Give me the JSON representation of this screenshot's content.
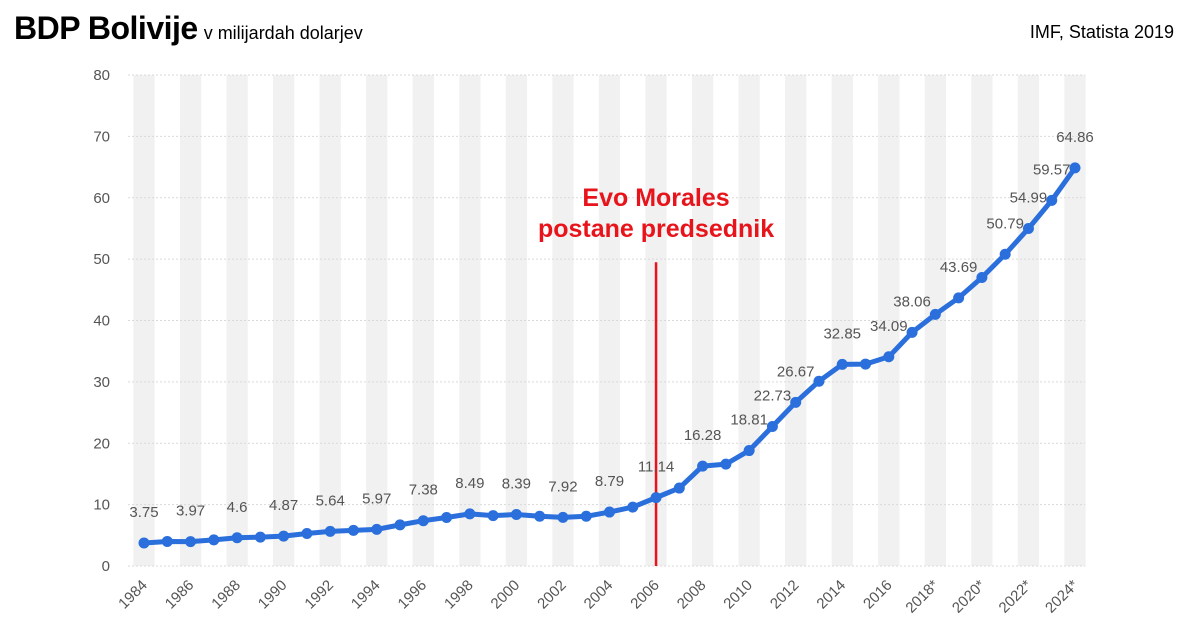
{
  "header": {
    "title": "BDP Bolivije",
    "subtitle": "v milijardah dolarjev",
    "source": "IMF, Statista 2019"
  },
  "colors": {
    "line": "#2a6fdb",
    "annotation": "#e8141b",
    "band": "#f1f1f1",
    "grid": "#d9d9d9",
    "text": "#555555"
  },
  "chart_data": {
    "type": "line",
    "title": "BDP Bolivije",
    "subtitle": "v milijardah dolarjev",
    "ylim": [
      0,
      80
    ],
    "yticks": [
      0,
      10,
      20,
      30,
      40,
      50,
      60,
      70,
      80
    ],
    "grid": true,
    "x": [
      "1984",
      "1985",
      "1986",
      "1987",
      "1988",
      "1989",
      "1990",
      "1991",
      "1992",
      "1993",
      "1994",
      "1995",
      "1996",
      "1997",
      "1998",
      "1999",
      "2000",
      "2001",
      "2002",
      "2003",
      "2004",
      "2005",
      "2006",
      "2007",
      "2008",
      "2009",
      "2010",
      "2011",
      "2012",
      "2013",
      "2014",
      "2015",
      "2016",
      "2017",
      "2018*",
      "2019*",
      "2020*",
      "2021*",
      "2022*",
      "2023*",
      "2024*"
    ],
    "xtick_labels": [
      "1984",
      "1986",
      "1988",
      "1990",
      "1992",
      "1994",
      "1996",
      "1998",
      "2000",
      "2002",
      "2004",
      "2006",
      "2008",
      "2010",
      "2012",
      "2014",
      "2016",
      "2018*",
      "2020*",
      "2022*",
      "2024*"
    ],
    "series": [
      {
        "values": [
          3.75,
          4.0,
          3.97,
          4.25,
          4.6,
          4.7,
          4.87,
          5.3,
          5.64,
          5.8,
          5.97,
          6.7,
          7.38,
          7.9,
          8.49,
          8.2,
          8.39,
          8.1,
          7.92,
          8.1,
          8.79,
          9.6,
          11.14,
          12.7,
          16.28,
          16.6,
          18.81,
          22.73,
          26.67,
          30.1,
          32.85,
          32.9,
          34.09,
          38.06,
          41.0,
          43.69,
          47.0,
          50.79,
          54.99,
          59.57,
          64.86
        ]
      }
    ],
    "data_labels": [
      {
        "x": "1984",
        "text": "3.75"
      },
      {
        "x": "1986",
        "text": "3.97"
      },
      {
        "x": "1988",
        "text": "4.6"
      },
      {
        "x": "1990",
        "text": "4.87"
      },
      {
        "x": "1992",
        "text": "5.64"
      },
      {
        "x": "1994",
        "text": "5.97"
      },
      {
        "x": "1996",
        "text": "7.38"
      },
      {
        "x": "1998",
        "text": "8.49"
      },
      {
        "x": "2000",
        "text": "8.39"
      },
      {
        "x": "2002",
        "text": "7.92"
      },
      {
        "x": "2004",
        "text": "8.79"
      },
      {
        "x": "2006",
        "text": "11.14"
      },
      {
        "x": "2008",
        "text": "16.28"
      },
      {
        "x": "2010",
        "text": "18.81"
      },
      {
        "x": "2011",
        "text": "22.73"
      },
      {
        "x": "2012",
        "text": "26.67"
      },
      {
        "x": "2014",
        "text": "32.85"
      },
      {
        "x": "2016",
        "text": "34.09"
      },
      {
        "x": "2017",
        "text": "38.06"
      },
      {
        "x": "2019*",
        "text": "43.69"
      },
      {
        "x": "2021*",
        "text": "50.79"
      },
      {
        "x": "2022*",
        "text": "54.99"
      },
      {
        "x": "2023*",
        "text": "59.57"
      },
      {
        "x": "2024*",
        "text": "64.86"
      }
    ],
    "annotation": {
      "x": "2006",
      "y_from": 0,
      "y_to": 49.5,
      "lines": [
        "Evo Morales",
        "postane predsednik"
      ]
    }
  }
}
